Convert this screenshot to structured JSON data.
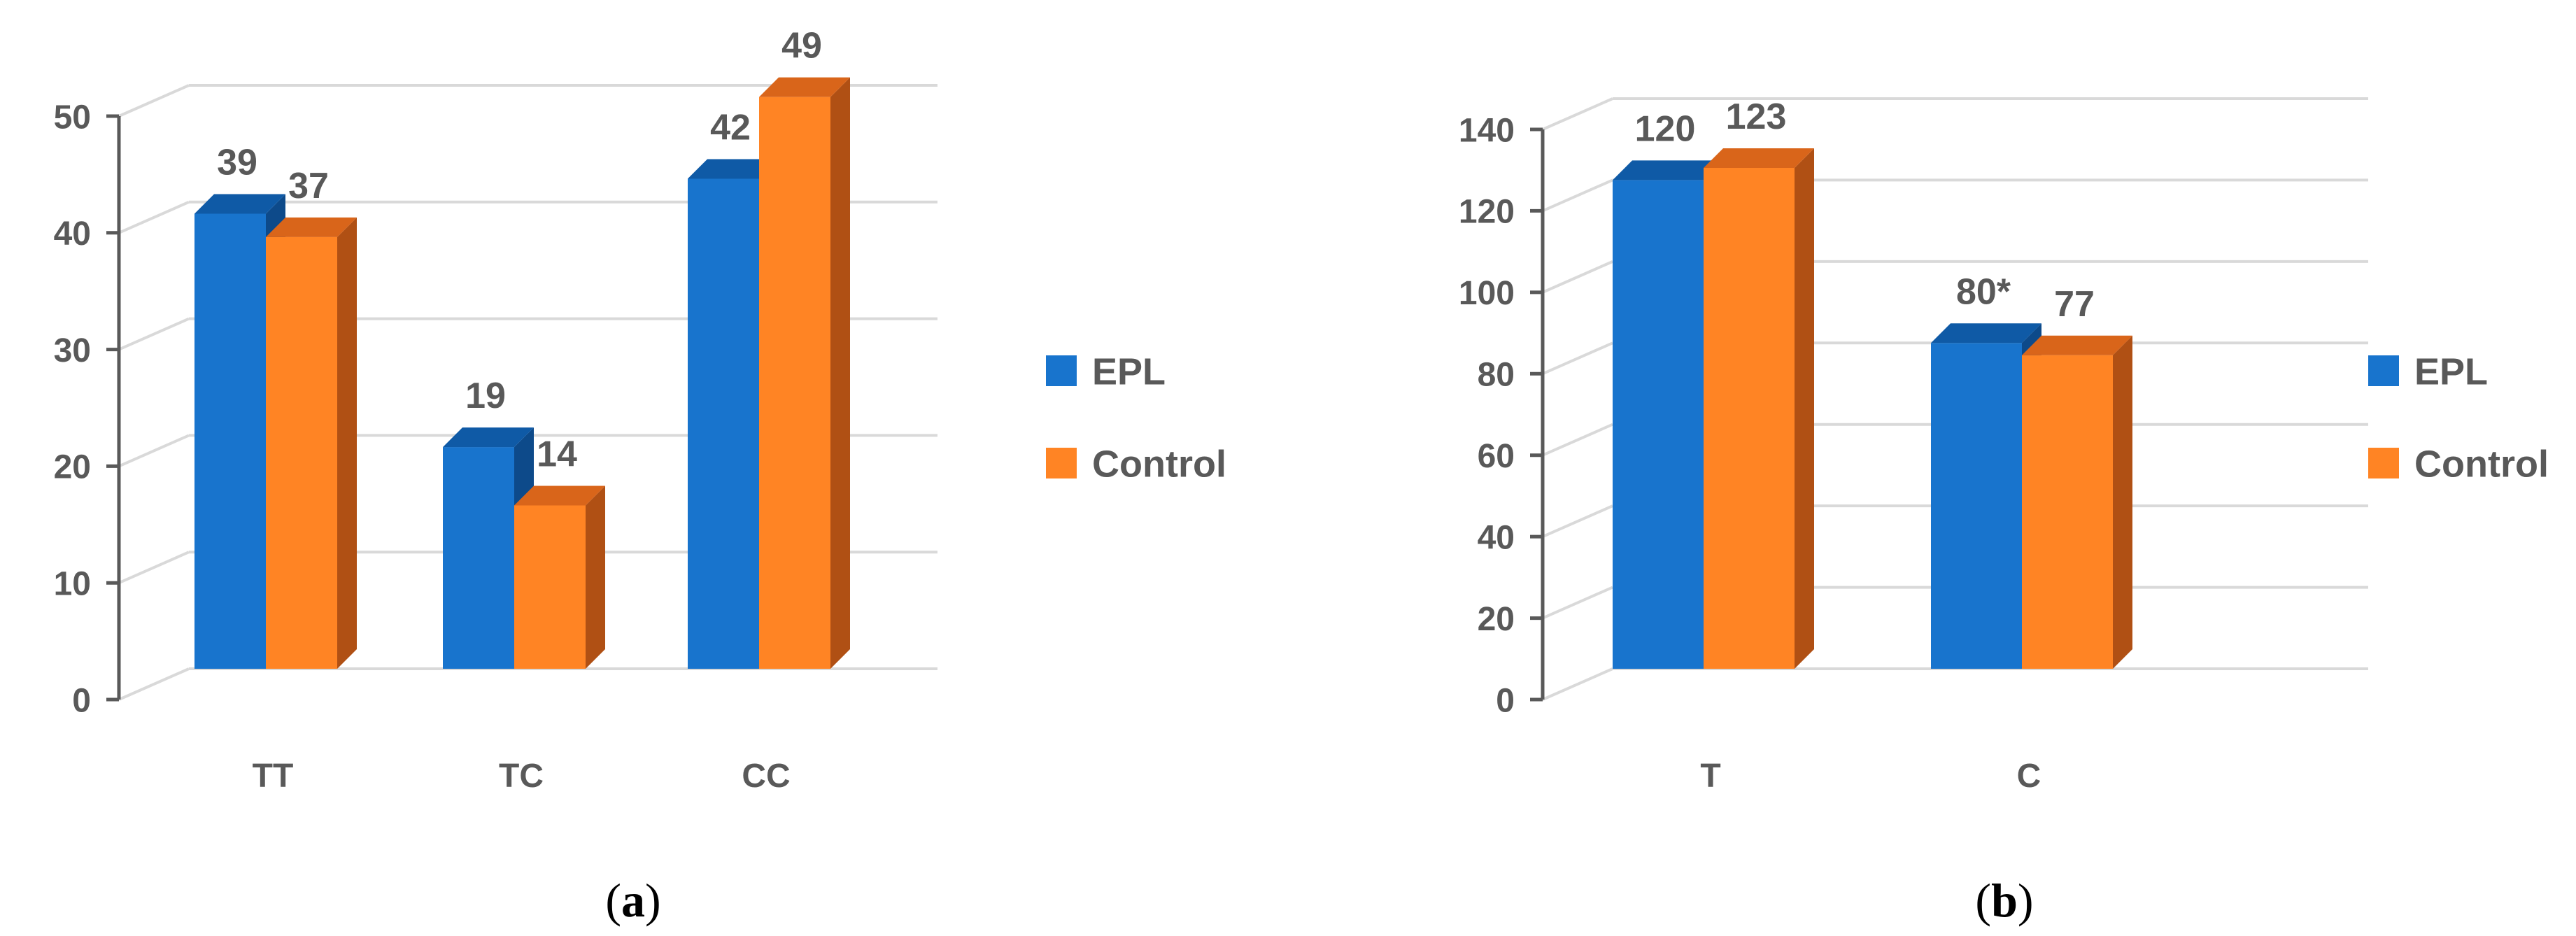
{
  "chart_data": [
    {
      "type": "bar",
      "categories": [
        "TT",
        "TC",
        "CC"
      ],
      "series": [
        {
          "name": "EPL",
          "values": [
            39,
            19,
            42
          ],
          "labels": [
            "39",
            "19",
            "42"
          ]
        },
        {
          "name": "Control",
          "values": [
            37,
            14,
            49
          ],
          "labels": [
            "37",
            "14",
            "49"
          ]
        }
      ],
      "yticks": [
        "0",
        "10",
        "20",
        "30",
        "40",
        "50"
      ],
      "ylim": [
        0,
        50
      ],
      "grid": true,
      "legend_position": "right",
      "panel_label": "(a)"
    },
    {
      "type": "bar",
      "categories": [
        "T",
        "C"
      ],
      "series": [
        {
          "name": "EPL",
          "values": [
            120,
            80
          ],
          "labels": [
            "120",
            "80*"
          ]
        },
        {
          "name": "Control",
          "values": [
            123,
            77
          ],
          "labels": [
            "123",
            "77"
          ]
        }
      ],
      "yticks": [
        "0",
        "20",
        "40",
        "60",
        "80",
        "100",
        "120",
        "140"
      ],
      "ylim": [
        0,
        140
      ],
      "grid": true,
      "legend_position": "right",
      "panel_label": "(b)"
    }
  ],
  "colors": {
    "EPL": "#1874CD",
    "EPL_side": "#0D4A8A",
    "EPL_top": "#0F5AA6",
    "Control": "#FF8424",
    "Control_side": "#B05014",
    "Control_top": "#D9651A",
    "axis": "#595959",
    "grid": "#D9D9D9",
    "text": "#595959"
  }
}
